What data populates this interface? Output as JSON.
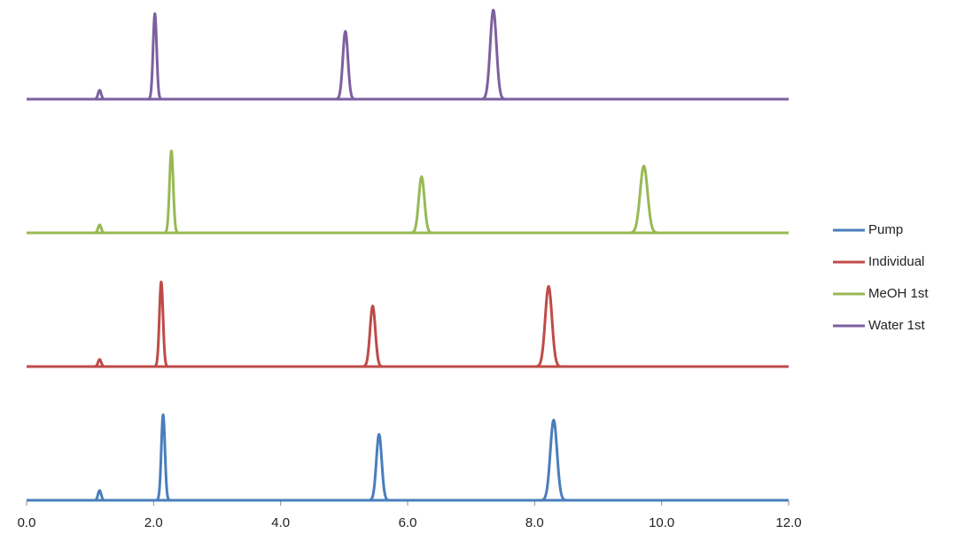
{
  "chart_data": {
    "type": "chromatogram",
    "xlim": [
      0,
      12
    ],
    "xticks": [
      {
        "value": 0,
        "label": "0.0"
      },
      {
        "value": 2,
        "label": "2.0"
      },
      {
        "value": 4,
        "label": "4.0"
      },
      {
        "value": 6,
        "label": "6.0"
      },
      {
        "value": 8,
        "label": "8.0"
      },
      {
        "value": 10,
        "label": "10.0"
      },
      {
        "value": 12,
        "label": "12.0"
      }
    ],
    "ylim": [
      0,
      150
    ],
    "legend": "right",
    "series": [
      {
        "name": "Pump",
        "color": "#4a7ebb",
        "x": [
          1.15,
          2.15,
          5.55,
          8.3
        ],
        "values": [
          11,
          96,
          74,
          90
        ]
      },
      {
        "name": "Individual",
        "color": "#be4b48",
        "x": [
          1.15,
          2.12,
          5.45,
          8.22
        ],
        "values": [
          8,
          95,
          68,
          90
        ]
      },
      {
        "name": "MeOH 1st",
        "color": "#98b954",
        "x": [
          1.15,
          2.28,
          6.22,
          9.72
        ],
        "values": [
          9,
          92,
          63,
          75
        ]
      },
      {
        "name": "Water 1st",
        "color": "#7d60a0",
        "x": [
          1.15,
          2.02,
          5.02,
          7.35
        ],
        "values": [
          10,
          96,
          76,
          100
        ]
      }
    ]
  }
}
